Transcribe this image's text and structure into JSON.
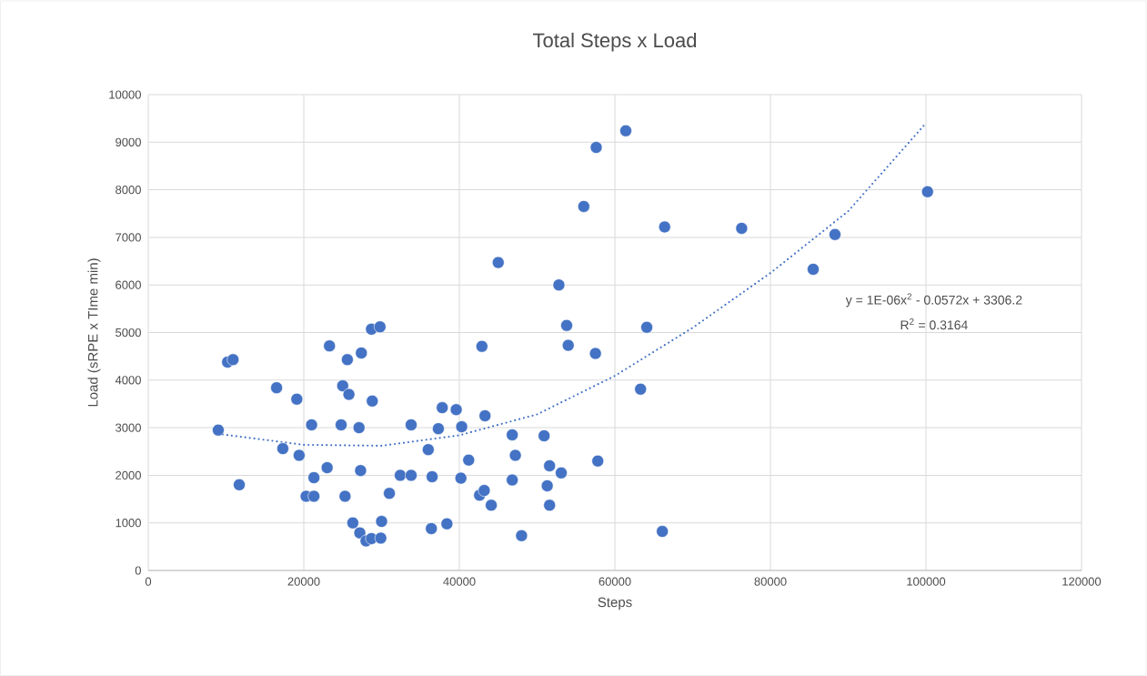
{
  "chart_data": {
    "type": "scatter",
    "title": "Total Steps x Load",
    "xlabel": "Steps",
    "ylabel": "Load (sRPE x TIme min)",
    "xlim": [
      0,
      120000
    ],
    "xticks": [
      0,
      20000,
      40000,
      60000,
      80000,
      100000,
      120000
    ],
    "ylim": [
      0,
      10000
    ],
    "yticks": [
      0,
      1000,
      2000,
      3000,
      4000,
      5000,
      6000,
      7000,
      8000,
      9000,
      10000
    ],
    "grid": true,
    "annotations": [
      "y = 1E-06x$^{2}$ - 0.0572x + 3306.2",
      "R$^{2}$ = 0.3164"
    ],
    "series": [
      {
        "color": "#4472c4",
        "marker": "circle",
        "x": [
          9000,
          10200,
          10900,
          11700,
          16500,
          17300,
          19100,
          19400,
          20300,
          21000,
          21300,
          21300,
          23000,
          23300,
          24800,
          25000,
          25300,
          25600,
          25800,
          26300,
          27100,
          27300,
          27400,
          27200,
          28000,
          28700,
          28700,
          28800,
          29800,
          29900,
          30000,
          31000,
          32400,
          33800,
          33800,
          36000,
          36400,
          36500,
          37300,
          37800,
          38400,
          39600,
          40300,
          40200,
          41200,
          42900,
          45000,
          42600,
          43200,
          43300,
          44100,
          46800,
          47200,
          46800,
          48000,
          50900,
          51300,
          51600,
          51600,
          52800,
          53100,
          53800,
          54000,
          56000,
          57600,
          57500,
          57800,
          61400,
          63300,
          64100,
          66100,
          66400,
          76300,
          85500,
          88300,
          100200
        ],
        "values": [
          2950,
          4380,
          4430,
          1800,
          3840,
          2560,
          3600,
          2420,
          1560,
          3060,
          1950,
          1560,
          2160,
          4720,
          3060,
          3880,
          1560,
          4430,
          3700,
          1000,
          3000,
          2100,
          4570,
          790,
          620,
          5070,
          670,
          3560,
          5120,
          680,
          1030,
          1620,
          2000,
          3060,
          2000,
          2540,
          880,
          1970,
          2980,
          3420,
          980,
          3380,
          3020,
          1940,
          2320,
          4710,
          6470,
          1580,
          1680,
          3250,
          1370,
          2850,
          2420,
          1900,
          730,
          2830,
          1780,
          2200,
          1370,
          6000,
          2050,
          5150,
          4730,
          7650,
          8890,
          4560,
          2300,
          9240,
          3810,
          5110,
          820,
          7220,
          7190,
          6330,
          7060,
          7960
        ]
      },
      {
        "type": "line",
        "color": "#4472c4",
        "line_style": "dotted",
        "marker": "none",
        "x": [
          9000,
          20000,
          30000,
          40000,
          50000,
          60000,
          70000,
          80000,
          90000,
          100000
        ],
        "values": [
          2870,
          2640,
          2620,
          2840,
          3280,
          4090,
          5100,
          6250,
          7550,
          9400
        ]
      }
    ]
  }
}
